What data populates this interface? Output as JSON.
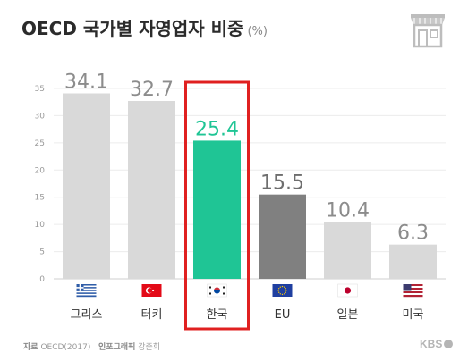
{
  "title": "OECD 국가별 자영업자 비중",
  "title_unit": "(%)",
  "icon": "shop-icon",
  "chart_data": {
    "type": "bar",
    "title": "OECD 국가별 자영업자 비중",
    "unit": "(%)",
    "categories": [
      "그리스",
      "터키",
      "한국",
      "EU",
      "일본",
      "미국"
    ],
    "values": [
      34.1,
      32.7,
      25.4,
      15.5,
      10.4,
      6.3
    ],
    "data_labels": [
      "34.1",
      "32.7",
      "25.4",
      "15.5",
      "10.4",
      "6.3"
    ],
    "flags": [
      "greece-flag-icon",
      "turkey-flag-icon",
      "korea-flag-icon",
      "eu-flag-icon",
      "japan-flag-icon",
      "usa-flag-icon"
    ],
    "bar_colors": [
      "#d9d9d9",
      "#d9d9d9",
      "#1fc595",
      "#808080",
      "#d9d9d9",
      "#d9d9d9"
    ],
    "label_colors": [
      "#8c8c8c",
      "#8c8c8c",
      "#1fc595",
      "#6e6e6e",
      "#8c8c8c",
      "#8c8c8c"
    ],
    "highlight_category": "한국",
    "highlight_color": "#e02020",
    "yticks": [
      0,
      5,
      10,
      15,
      20,
      25,
      30,
      35
    ],
    "ylim": [
      0,
      35
    ],
    "grid": true,
    "xlabel": "",
    "ylabel": ""
  },
  "footer": {
    "source_label": "자료",
    "source_value": "OECD(2017)",
    "credit_label": "인포그래픽",
    "credit_value": "강준희",
    "logo": "KBS"
  }
}
